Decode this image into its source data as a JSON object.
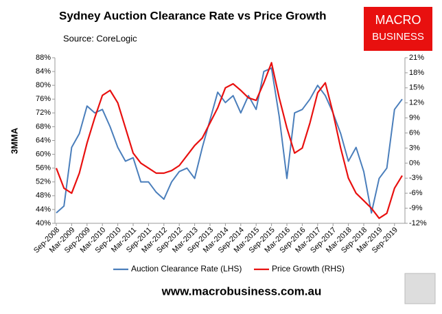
{
  "chart_data": {
    "type": "line",
    "title": "Sydney Auction Clearance Rate vs Price Growth",
    "source": "Source: CoreLogic",
    "ylabel": "3MMA",
    "brand": [
      "MACRO",
      "BUSINESS"
    ],
    "website": "www.macrobusiness.com.au",
    "categories": [
      "Sep-2008",
      null,
      "Mar-2009",
      null,
      "Sep-2009",
      null,
      "Mar-2010",
      null,
      "Sep-2010",
      null,
      "Mar-2011",
      null,
      "Sep-2011",
      null,
      "Mar-2012",
      null,
      "Sep-2012",
      null,
      "Mar-2013",
      null,
      "Sep-2013",
      null,
      "Mar-2014",
      null,
      "Sep-2014",
      null,
      "Mar-2015",
      null,
      "Sep-2015",
      null,
      "Mar-2016",
      null,
      "Sep-2016",
      null,
      "Mar-2017",
      null,
      "Sep-2017",
      null,
      "Mar-2018",
      null,
      "Sep-2018",
      null,
      "Mar-2019",
      null,
      "Sep-2019",
      null
    ],
    "series": [
      {
        "name": "Auction Clearance Rate (LHS)",
        "color": "#4a7ebb",
        "axis": "y",
        "values": [
          43,
          45,
          62,
          66,
          74,
          72,
          73,
          68,
          62,
          58,
          59,
          52,
          52,
          49,
          47,
          52,
          55,
          56,
          53,
          62,
          70,
          78,
          75,
          77,
          72,
          77,
          73,
          84,
          85,
          71,
          53,
          72,
          73,
          76,
          80,
          77,
          72,
          66,
          58,
          62,
          55,
          43,
          53,
          56,
          73,
          76
        ]
      },
      {
        "name": "Price Growth (RHS)",
        "color": "#e8100f",
        "axis": "y2",
        "values": [
          -1,
          -5,
          -6,
          -2,
          4,
          9,
          13.5,
          14.5,
          12,
          7,
          2,
          0,
          -1,
          -2,
          -2,
          -1.5,
          -0.5,
          1.5,
          3.5,
          5,
          8,
          11,
          15,
          15.8,
          14.5,
          13,
          12.5,
          16,
          20,
          13,
          7,
          2,
          3,
          8,
          14,
          16,
          10,
          3,
          -3,
          -6,
          -7.5,
          -9,
          -11,
          -10,
          -5,
          -2.5
        ]
      }
    ],
    "ylim": [
      40,
      88
    ],
    "yticks": [
      {
        "value": 40,
        "label": "40%"
      },
      {
        "value": 44,
        "label": "44%"
      },
      {
        "value": 48,
        "label": "48%"
      },
      {
        "value": 52,
        "label": "52%"
      },
      {
        "value": 56,
        "label": "56%"
      },
      {
        "value": 60,
        "label": "60%"
      },
      {
        "value": 64,
        "label": "64%"
      },
      {
        "value": 68,
        "label": "68%"
      },
      {
        "value": 72,
        "label": "72%"
      },
      {
        "value": 76,
        "label": "76%"
      },
      {
        "value": 80,
        "label": "80%"
      },
      {
        "value": 84,
        "label": "84%"
      },
      {
        "value": 88,
        "label": "88%"
      }
    ],
    "y2lim": [
      -12,
      21
    ],
    "y2ticks": [
      {
        "value": -12,
        "label": "-12%"
      },
      {
        "value": -9,
        "label": "-9%"
      },
      {
        "value": -6,
        "label": "-6%"
      },
      {
        "value": -3,
        "label": "-3%"
      },
      {
        "value": 0,
        "label": "0%"
      },
      {
        "value": 3,
        "label": "3%"
      },
      {
        "value": 6,
        "label": "6%"
      },
      {
        "value": 9,
        "label": "9%"
      },
      {
        "value": 12,
        "label": "12%"
      },
      {
        "value": 15,
        "label": "15%"
      },
      {
        "value": 18,
        "label": "18%"
      },
      {
        "value": 21,
        "label": "21%"
      }
    ]
  }
}
